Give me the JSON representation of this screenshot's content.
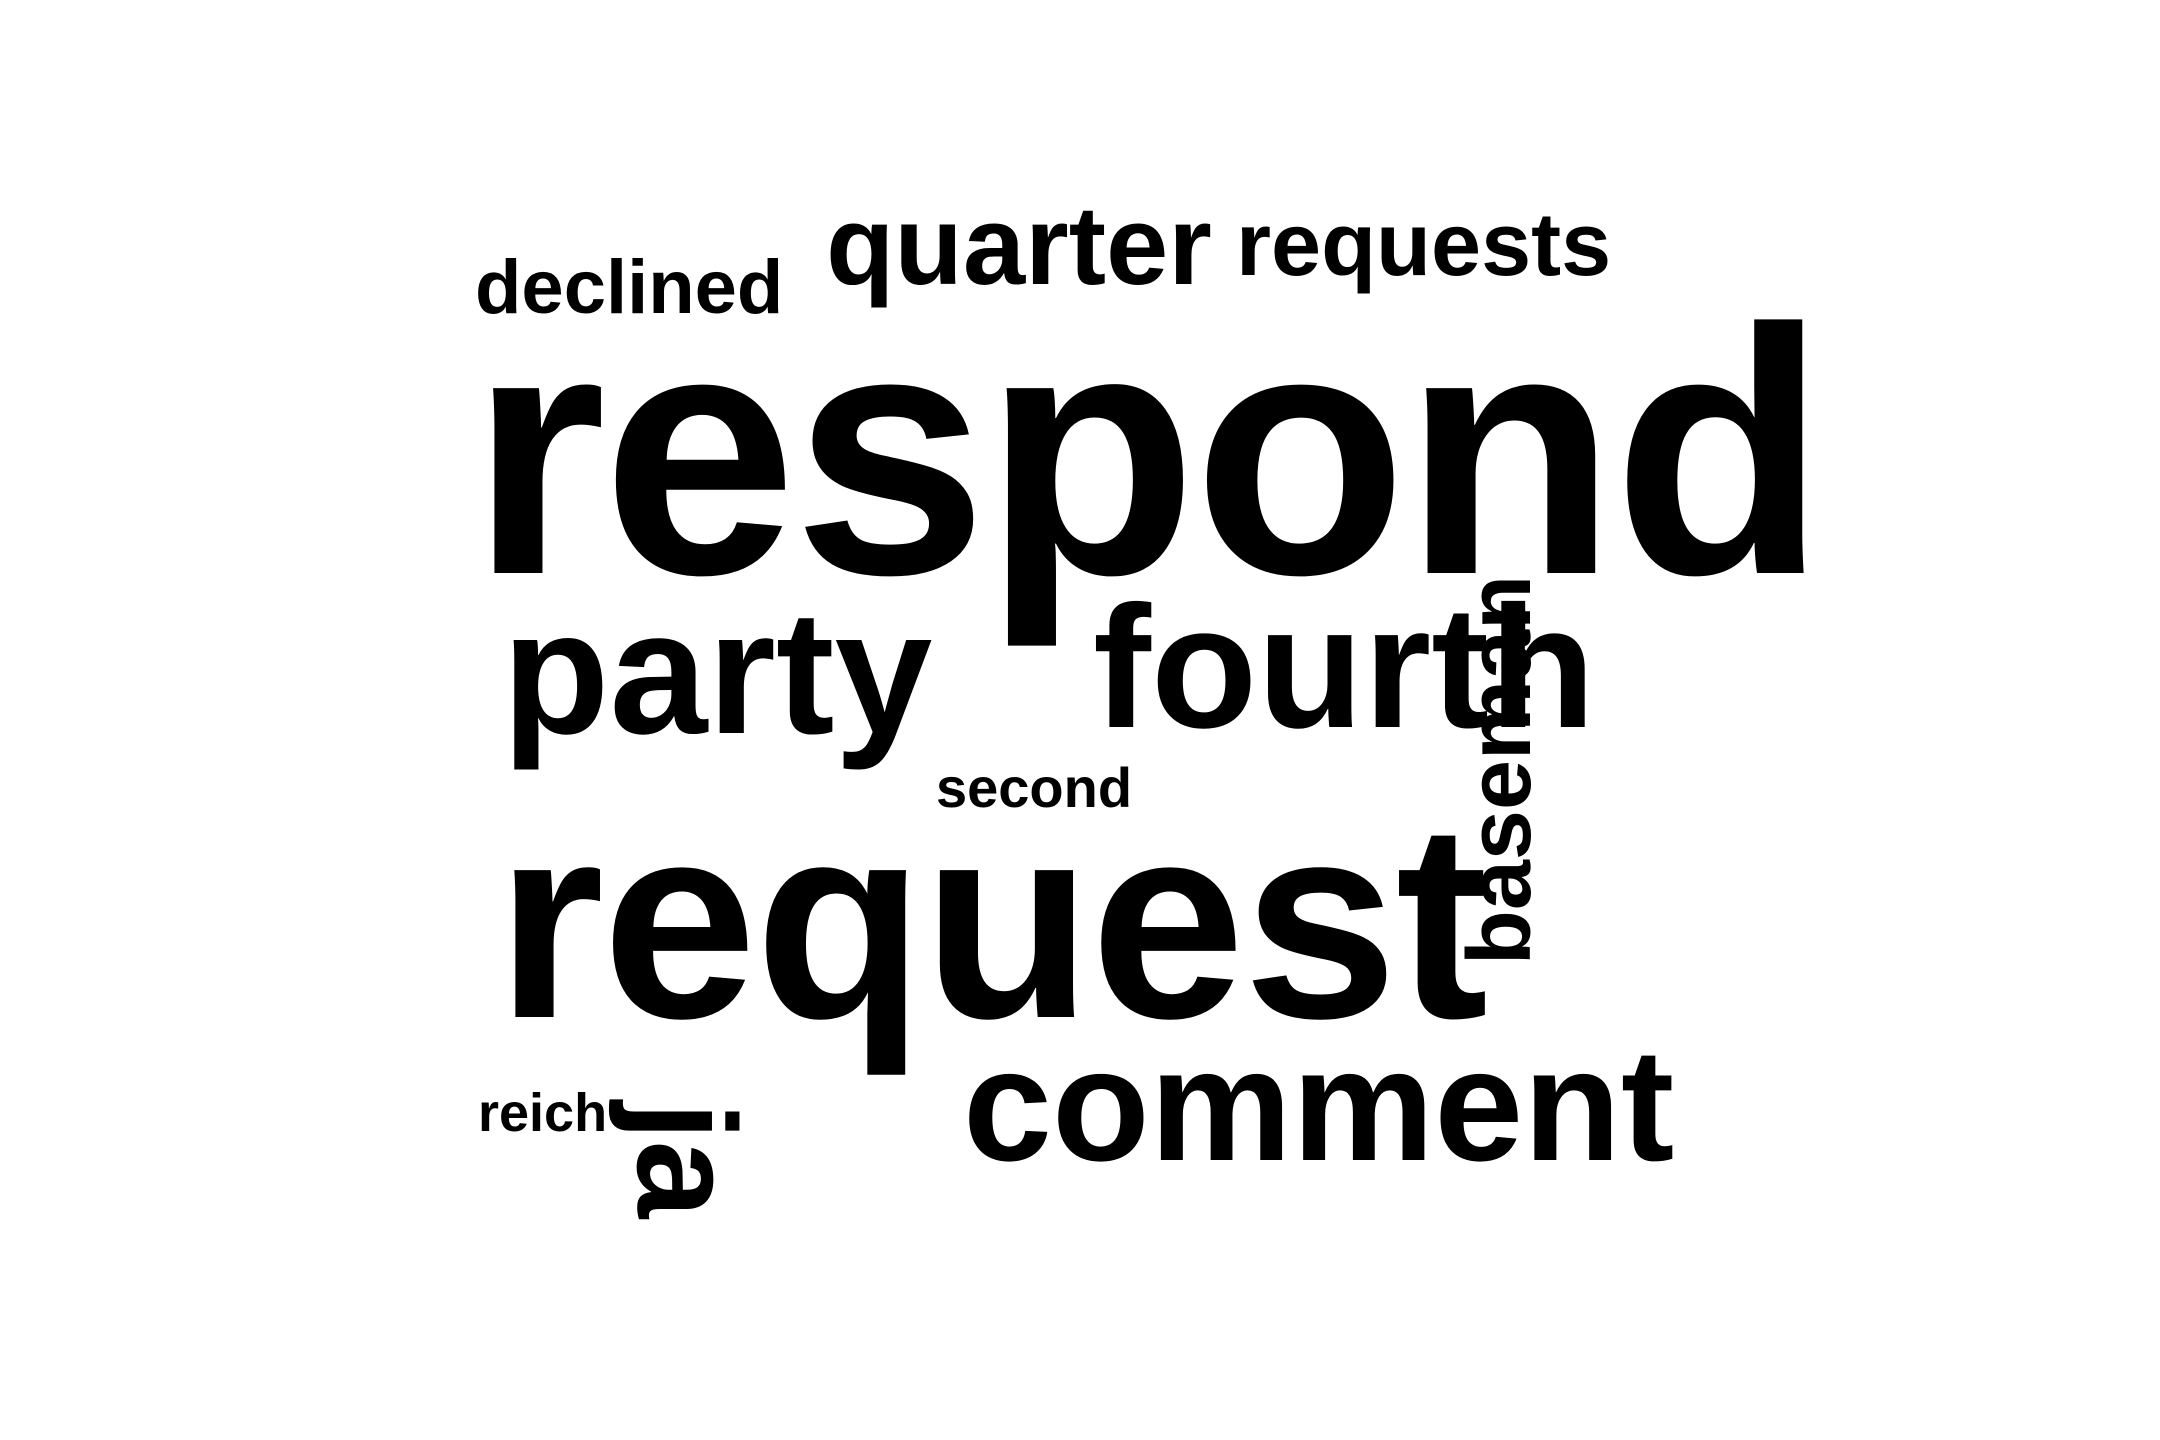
{
  "cloud": {
    "background": "#ffffff",
    "text_color": "#000000",
    "words": {
      "declined": "declined",
      "quarter": "quarter",
      "requests": "requests",
      "respond": "respond",
      "party": "party",
      "fourth": "fourth",
      "second": "second",
      "request": "request",
      "baseman": "baseman",
      "comment": "comment",
      "reich": "reich",
      "ja": "ja"
    }
  }
}
